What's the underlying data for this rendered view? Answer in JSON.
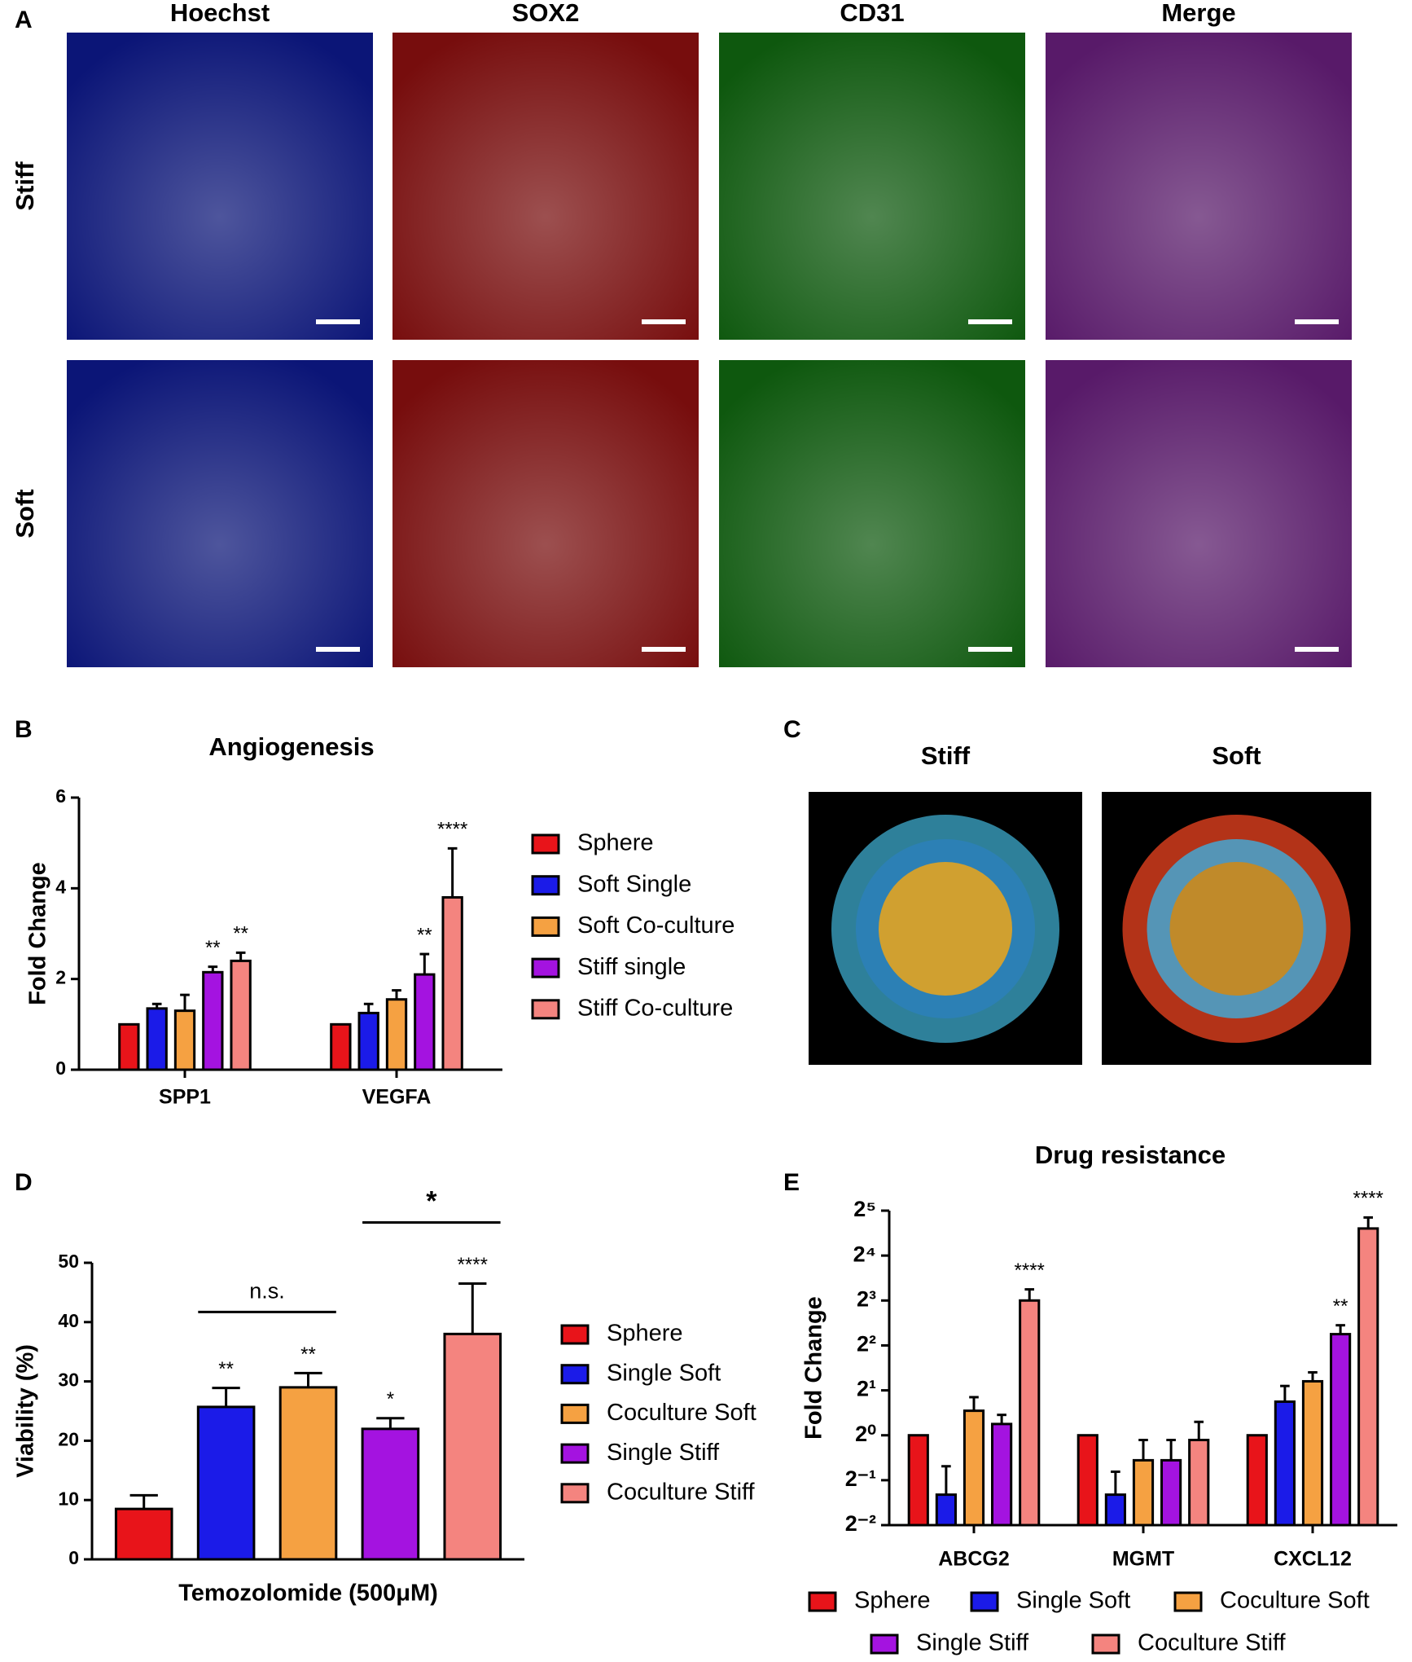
{
  "figure": {
    "panel_labels": [
      "A",
      "B",
      "C",
      "D",
      "E"
    ],
    "channels": [
      {
        "name": "Hoechst",
        "color": "#1ea7e8"
      },
      {
        "name": "SOX2",
        "color": "#e8141a"
      },
      {
        "name": "CD31",
        "color": "#1fc81f"
      },
      {
        "name": "Merge",
        "color": "#000000"
      }
    ],
    "rows": [
      "Stiff",
      "Soft"
    ],
    "render_titles": [
      "Stiff",
      "Soft"
    ]
  },
  "chart_data": [
    {
      "type": "bar",
      "title": "Angiogenesis",
      "y_label": "Fold Change",
      "categories": [
        "SPP1",
        "VEGFA"
      ],
      "series": [
        {
          "name": "Sphere",
          "color": "#e8141a",
          "values": [
            1,
            1
          ]
        },
        {
          "name": "Soft Single",
          "color": "#1b1be8",
          "values": [
            1.35,
            1.25
          ],
          "errors": [
            0.1,
            0.2
          ]
        },
        {
          "name": "Soft Co-culture",
          "color": "#f5a142",
          "values": [
            1.3,
            1.55
          ],
          "errors": [
            0.35,
            0.2
          ]
        },
        {
          "name": "Stiff single",
          "color": "#a413e0",
          "values": [
            2.15,
            2.1
          ],
          "errors": [
            0.12,
            0.45
          ],
          "annotations": [
            "**",
            "**"
          ]
        },
        {
          "name": "Stiff Co-culture",
          "color": "#f4847f",
          "values": [
            2.4,
            3.8
          ],
          "errors": [
            0.18,
            1.08
          ],
          "annotations": [
            "**",
            "****"
          ]
        }
      ],
      "ylim": [
        0,
        6
      ],
      "yticks": [
        0,
        2,
        4,
        6
      ]
    },
    {
      "type": "bar",
      "x_label": "Temozolomide (500μM)",
      "y_label": "Viability (%)",
      "categories": [
        null
      ],
      "series": [
        {
          "name": "Sphere",
          "color": "#e8141a",
          "values": [
            8.5
          ],
          "errors": [
            2.3
          ]
        },
        {
          "name": "Single Soft",
          "color": "#1b1be8",
          "values": [
            25.7
          ],
          "errors": [
            3.2
          ],
          "annotations": [
            "**"
          ]
        },
        {
          "name": "Coculture Soft",
          "color": "#f5a142",
          "values": [
            29
          ],
          "errors": [
            2.4
          ],
          "annotations": [
            "**"
          ]
        },
        {
          "name": "Single Stiff",
          "color": "#a413e0",
          "values": [
            22
          ],
          "errors": [
            1.8
          ],
          "annotations": [
            "*"
          ]
        },
        {
          "name": "Coculture Stiff",
          "color": "#f4847f",
          "values": [
            38
          ],
          "errors": [
            8.5
          ],
          "annotations": [
            "****"
          ]
        }
      ],
      "brackets": [
        {
          "from": 1,
          "to": 2,
          "label": "n.s."
        },
        {
          "from": 3,
          "to": 4,
          "label": "*"
        }
      ],
      "ylim": [
        0,
        50
      ],
      "yticks": [
        0,
        10,
        20,
        30,
        40,
        50
      ]
    },
    {
      "type": "bar",
      "title": "Drug resistance",
      "y_label": "Fold Change",
      "ylog": 2,
      "categories": [
        "ABCG2",
        "MGMT",
        "CXCL12"
      ],
      "series": [
        {
          "name": "Sphere",
          "color": "#e8141a",
          "values": [
            1,
            1,
            1
          ]
        },
        {
          "name": "Single Soft",
          "color": "#1b1be8",
          "values": [
            0.4,
            0.4,
            1.68
          ],
          "errors": [
            0.22,
            0.17,
            0.46
          ]
        },
        {
          "name": "Coculture Soft",
          "color": "#f5a142",
          "values": [
            1.46,
            0.68,
            2.3
          ],
          "errors": [
            0.34,
            0.25,
            0.34
          ]
        },
        {
          "name": "Single Stiff",
          "color": "#a413e0",
          "values": [
            1.19,
            0.68,
            4.76
          ],
          "errors": [
            0.18,
            0.25,
            0.7
          ],
          "annotations": [
            null,
            null,
            "**"
          ]
        },
        {
          "name": "Coculture Stiff",
          "color": "#f4847f",
          "values": [
            8,
            0.93,
            24.3
          ],
          "errors": [
            1.5,
            0.3,
            4.5
          ],
          "annotations": [
            "****",
            null,
            "****"
          ]
        }
      ],
      "ylim": [
        0.25,
        32
      ],
      "yticks": [
        {
          "value": 0.25,
          "label": "2⁻²"
        },
        {
          "value": 0.5,
          "label": "2⁻¹"
        },
        {
          "value": 1,
          "label": "2⁰"
        },
        {
          "value": 2,
          "label": "2¹"
        },
        {
          "value": 4,
          "label": "2²"
        },
        {
          "value": 8,
          "label": "2³"
        },
        {
          "value": 16,
          "label": "2⁴"
        },
        {
          "value": 32,
          "label": "2⁵"
        }
      ]
    }
  ]
}
